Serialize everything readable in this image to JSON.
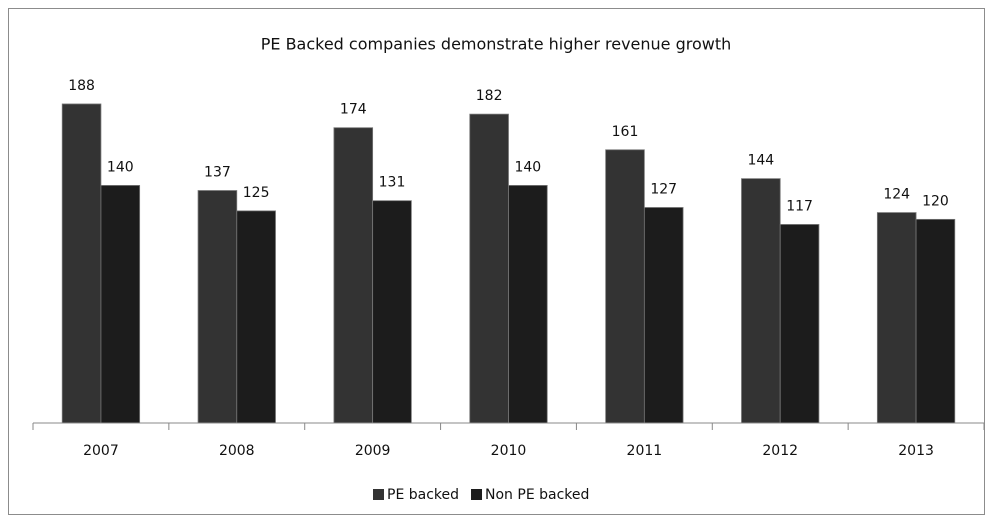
{
  "chart_data": {
    "type": "bar",
    "title": "PE Backed companies demonstrate higher revenue growth",
    "categories": [
      "2007",
      "2008",
      "2009",
      "2010",
      "2011",
      "2012",
      "2013"
    ],
    "series": [
      {
        "name": "PE backed",
        "color": "#333333",
        "values": [
          188,
          137,
          174,
          182,
          161,
          144,
          124
        ]
      },
      {
        "name": "Non PE backed",
        "color": "#1c1c1c",
        "values": [
          140,
          125,
          131,
          140,
          127,
          117,
          120
        ]
      }
    ],
    "ylim": [
      0,
      200
    ],
    "legend": "bottom"
  }
}
